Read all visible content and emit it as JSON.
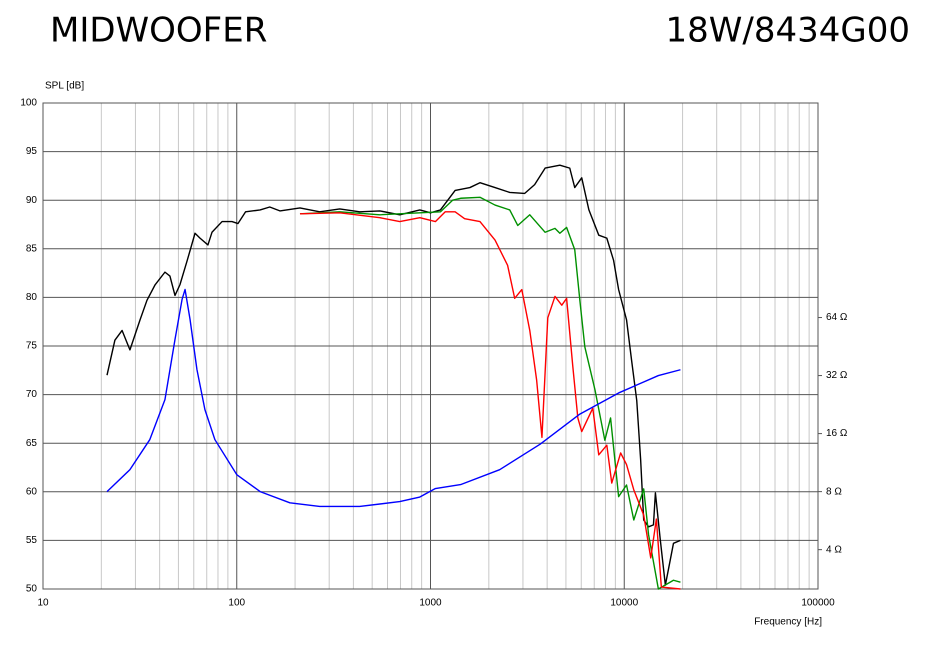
{
  "chart_data": {
    "type": "line",
    "title": "MIDWOOFER",
    "subtitle": "18W/8434G00",
    "y_label": "SPL [dB]",
    "x_label": "Frequency [Hz]",
    "x_scale": "log",
    "y2_scale": "log",
    "grid": true,
    "minor_grid": true,
    "xlim": [
      10,
      100000
    ],
    "xticks": [
      10,
      100,
      1000,
      10000,
      100000
    ],
    "ylim": [
      50,
      100
    ],
    "yticks": [
      50,
      55,
      60,
      65,
      70,
      75,
      80,
      85,
      90,
      95,
      100
    ],
    "y2lim": [
      2.5,
      830
    ],
    "y2ticks": [
      {
        "value": 4,
        "label": "4 Ω"
      },
      {
        "value": 8,
        "label": "8 Ω"
      },
      {
        "value": 16,
        "label": "16 Ω"
      },
      {
        "value": 32,
        "label": "32 Ω"
      },
      {
        "value": 64,
        "label": "64 Ω"
      }
    ],
    "series": [
      {
        "color": "#000000",
        "x": [
          21.4,
          23.5,
          25.6,
          28.1,
          31.7,
          34.4,
          37.9,
          42.6,
          45.2,
          48,
          50.9,
          55.5,
          60.9,
          64.6,
          71,
          74.5,
          84,
          94.5,
          101.5,
          111,
          132,
          148,
          167,
          212,
          268,
          340,
          431,
          548,
          694,
          881,
          1000,
          1125,
          1340,
          1597,
          1800,
          2153,
          2564,
          3064,
          3448,
          3905,
          4652,
          5233,
          5553,
          6033,
          6570,
          7387,
          8128,
          8812,
          9354,
          10275,
          10900,
          11600,
          12150,
          12600,
          13350,
          14150,
          14480,
          15360,
          16300,
          16900,
          17950,
          19500
        ],
        "values": [
          72,
          75.6,
          76.6,
          74.6,
          77.7,
          79.7,
          81.3,
          82.6,
          82.2,
          80.2,
          81.3,
          83.8,
          86.6,
          86.1,
          85.4,
          86.7,
          87.8,
          87.8,
          87.6,
          88.8,
          89,
          89.3,
          88.9,
          89.2,
          88.8,
          89.1,
          88.8,
          88.9,
          88.5,
          89,
          88.7,
          89,
          91,
          91.3,
          91.8,
          91.3,
          90.8,
          90.7,
          91.6,
          93.3,
          93.6,
          93.3,
          91.3,
          92.3,
          89,
          86.4,
          86.1,
          83.8,
          80.8,
          77.7,
          73.6,
          69.4,
          63.3,
          57.1,
          56.4,
          56.6,
          59.9,
          55,
          50.4,
          52,
          54.7,
          55
        ]
      },
      {
        "color": "#009000",
        "x": [
          212,
          340,
          548,
          881,
          1125,
          1300,
          1430,
          1800,
          2153,
          2564,
          2820,
          3254,
          3905,
          4390,
          4652,
          5040,
          5553,
          5900,
          6260,
          7060,
          7940,
          8500,
          9354,
          10275,
          11200,
          12600,
          13350,
          15000,
          17950,
          19500
        ],
        "values": [
          88.6,
          88.8,
          88.5,
          88.7,
          88.8,
          90,
          90.2,
          90.3,
          89.5,
          89,
          87.4,
          88.5,
          86.7,
          87.1,
          86.6,
          87.2,
          84.9,
          79.7,
          74.9,
          70.5,
          65.3,
          67.6,
          59.5,
          60.7,
          57.1,
          60.3,
          55.6,
          50,
          50.9,
          50.7
        ]
      },
      {
        "color": "#ff0000",
        "x": [
          212,
          340,
          548,
          694,
          881,
          1060,
          1190,
          1340,
          1500,
          1800,
          2153,
          2500,
          2720,
          2960,
          3254,
          3530,
          3760,
          4030,
          4390,
          4760,
          5040,
          5420,
          5760,
          6033,
          6880,
          7387,
          8128,
          8620,
          9580,
          10275,
          11200,
          12600,
          13700,
          14650,
          15540,
          19500
        ],
        "values": [
          88.6,
          88.7,
          88.2,
          87.8,
          88.2,
          87.8,
          88.8,
          88.8,
          88.1,
          87.8,
          85.9,
          83.3,
          79.9,
          80.8,
          76.6,
          71.5,
          65.6,
          77.9,
          80.1,
          79.2,
          79.9,
          73,
          67.6,
          66.2,
          68.6,
          63.8,
          64.8,
          60.9,
          64,
          62.8,
          60.2,
          57.6,
          53.2,
          57.2,
          50.2,
          50
        ]
      },
      {
        "color": "#0000ff",
        "axis": "y2",
        "x": [
          21.4,
          28.1,
          35.6,
          42.6,
          48,
          52.2,
          54.1,
          57.4,
          62.3,
          68.5,
          77.1,
          100,
          132,
          188,
          268,
          431,
          694,
          881,
          1060,
          1430,
          2275,
          3680,
          5900,
          9354,
          15000,
          19500
        ],
        "values": [
          8,
          10.4,
          14.9,
          24,
          49.2,
          79.4,
          89.5,
          62.6,
          34.4,
          21.3,
          14.9,
          9.8,
          8,
          7,
          6.7,
          6.7,
          7.1,
          7.5,
          8.3,
          8.7,
          10.4,
          14.1,
          20.2,
          26,
          32,
          34.3
        ]
      }
    ]
  }
}
